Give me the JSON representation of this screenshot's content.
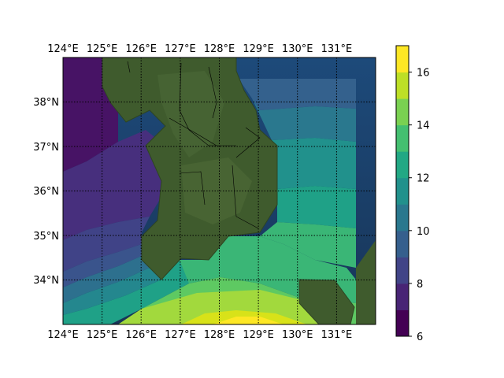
{
  "chart_data": {
    "type": "contour_map",
    "title": "",
    "lon_range": [
      124,
      132
    ],
    "lat_range": [
      33,
      39
    ],
    "lon_ticks": [
      "124°E",
      "125°E",
      "126°E",
      "127°E",
      "128°E",
      "129°E",
      "130°E",
      "131°E"
    ],
    "lat_ticks": [
      "34°N",
      "35°N",
      "36°N",
      "37°N",
      "38°N"
    ],
    "grid": true,
    "grid_style": "dotted",
    "basemap": "satellite imagery",
    "colorbar": {
      "orientation": "vertical",
      "placement": "right",
      "range": [
        6,
        17
      ],
      "ticks": [
        "6",
        "8",
        "10",
        "12",
        "14",
        "16"
      ],
      "levels": [
        6,
        7,
        8,
        9,
        10,
        11,
        12,
        13,
        14,
        15,
        16,
        17
      ],
      "colors": [
        "#440154",
        "#472d7b",
        "#3b528b",
        "#2c728e",
        "#21918c",
        "#28ae80",
        "#5ec962",
        "#addc30",
        "#fde725"
      ]
    },
    "contour_field": "increasing southward, ~6.5 in NW over Yellow Sea to ~17 in south near 33°N",
    "land_colors": {
      "land": "#3e5a2c",
      "ocean": "#1b3d66"
    }
  }
}
